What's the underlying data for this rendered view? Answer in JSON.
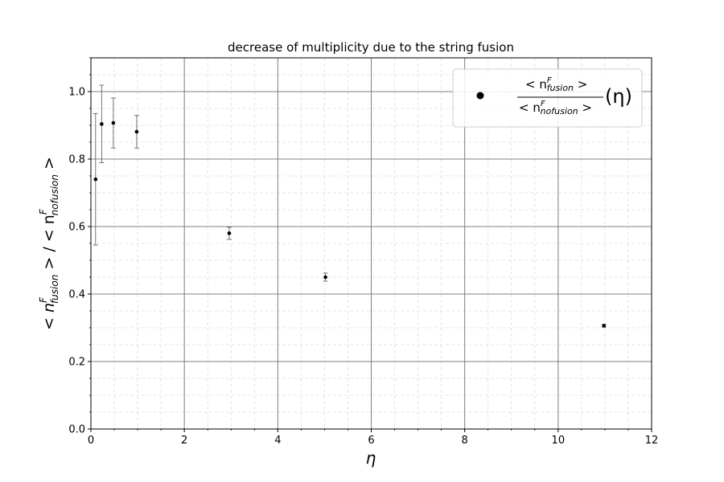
{
  "chart_data": {
    "type": "scatter",
    "title": "decrease of multiplicity due to the string fusion",
    "xlabel": "η",
    "ylabel": {
      "lt1": "< n",
      "sup1": "F",
      "sub1": "fusion",
      "mid": " > / < n",
      "sup2": "F",
      "sub2": "nofusion",
      "gt2": " >"
    },
    "xlim": [
      0,
      12
    ],
    "ylim": [
      0,
      1.1
    ],
    "xticks": [
      0,
      2,
      4,
      6,
      8,
      10,
      12
    ],
    "yticks": [
      0.0,
      0.2,
      0.4,
      0.6,
      0.8,
      1.0
    ],
    "xtick_labels": [
      "0",
      "2",
      "4",
      "6",
      "8",
      "10",
      "12"
    ],
    "ytick_labels": [
      "0.0",
      "0.2",
      "0.4",
      "0.6",
      "0.8",
      "1.0"
    ],
    "grid": {
      "major": true,
      "minor": true
    },
    "legend_position": "top-right",
    "legend": {
      "num_lt": "< n",
      "num_sup": "F",
      "num_sub": "fusion",
      "num_gt": " >",
      "den_lt": "< n",
      "den_sup": "F",
      "den_sub": "nofusion",
      "den_gt": " >",
      "suffix": "(η)"
    },
    "series": [
      {
        "x": [
          0.1,
          0.23,
          0.48,
          0.98,
          2.96,
          5.02,
          10.98
        ],
        "y": [
          0.74,
          0.904,
          0.907,
          0.881,
          0.58,
          0.45,
          0.306
        ],
        "yerr": [
          0.195,
          0.115,
          0.074,
          0.048,
          0.018,
          0.012,
          0.004
        ]
      }
    ],
    "colors": {
      "marker": "#000000",
      "major_grid": "#808080",
      "minor_grid": "#dddddd",
      "error_bar": "#555555"
    }
  }
}
